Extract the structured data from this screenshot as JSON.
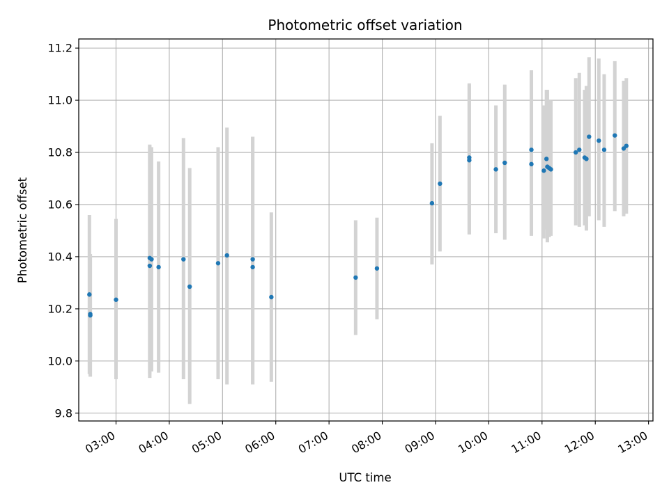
{
  "chart_data": {
    "type": "scatter",
    "title": "Photometric offset variation",
    "xlabel": "UTC time",
    "ylabel": "Photometric offset",
    "xlim": [
      "02:18",
      "13:05"
    ],
    "ylim": [
      9.77,
      11.235
    ],
    "grid": true,
    "x_ticks": [
      "03:00",
      "04:00",
      "05:00",
      "06:00",
      "07:00",
      "08:00",
      "09:00",
      "10:00",
      "11:00",
      "12:00",
      "13:00"
    ],
    "y_ticks": [
      9.8,
      10.0,
      10.2,
      10.4,
      10.6,
      10.8,
      11.0,
      11.2
    ],
    "y_tick_labels": [
      "9.8",
      "10.0",
      "10.2",
      "10.4",
      "10.6",
      "10.8",
      "11.0",
      "11.2"
    ],
    "colors": {
      "points": "#1f77b4",
      "error_bars": "#d3d3d3",
      "grid": "#b0b0b0"
    },
    "points": [
      {
        "x": "02:30",
        "y": 10.255,
        "lo": 9.95,
        "hi": 10.56
      },
      {
        "x": "02:31",
        "y": 10.18,
        "lo": 9.94,
        "hi": 10.41
      },
      {
        "x": "02:31",
        "y": 10.175,
        "lo": 9.94,
        "hi": 10.41
      },
      {
        "x": "03:00",
        "y": 10.235,
        "lo": 9.93,
        "hi": 10.545
      },
      {
        "x": "03:38",
        "y": 10.395,
        "lo": 9.935,
        "hi": 10.83
      },
      {
        "x": "03:38",
        "y": 10.365,
        "lo": 9.95,
        "hi": 10.825
      },
      {
        "x": "03:40",
        "y": 10.39,
        "lo": 9.96,
        "hi": 10.82
      },
      {
        "x": "03:48",
        "y": 10.36,
        "lo": 9.955,
        "hi": 10.765
      },
      {
        "x": "04:16",
        "y": 10.39,
        "lo": 9.93,
        "hi": 10.855
      },
      {
        "x": "04:23",
        "y": 10.285,
        "lo": 9.835,
        "hi": 10.74
      },
      {
        "x": "04:55",
        "y": 10.375,
        "lo": 9.93,
        "hi": 10.82
      },
      {
        "x": "05:05",
        "y": 10.405,
        "lo": 9.91,
        "hi": 10.895
      },
      {
        "x": "05:34",
        "y": 10.39,
        "lo": 9.91,
        "hi": 10.86
      },
      {
        "x": "05:34",
        "y": 10.36,
        "lo": 9.91,
        "hi": 10.86
      },
      {
        "x": "05:55",
        "y": 10.245,
        "lo": 9.92,
        "hi": 10.57
      },
      {
        "x": "07:30",
        "y": 10.32,
        "lo": 10.1,
        "hi": 10.54
      },
      {
        "x": "07:54",
        "y": 10.355,
        "lo": 10.16,
        "hi": 10.55
      },
      {
        "x": "08:56",
        "y": 10.605,
        "lo": 10.37,
        "hi": 10.835
      },
      {
        "x": "09:05",
        "y": 10.68,
        "lo": 10.42,
        "hi": 10.94
      },
      {
        "x": "09:38",
        "y": 10.78,
        "lo": 10.485,
        "hi": 11.065
      },
      {
        "x": "09:38",
        "y": 10.77,
        "lo": 10.485,
        "hi": 11.06
      },
      {
        "x": "10:08",
        "y": 10.735,
        "lo": 10.49,
        "hi": 10.98
      },
      {
        "x": "10:18",
        "y": 10.76,
        "lo": 10.465,
        "hi": 11.06
      },
      {
        "x": "10:48",
        "y": 10.81,
        "lo": 10.515,
        "hi": 11.115
      },
      {
        "x": "10:48",
        "y": 10.755,
        "lo": 10.48,
        "hi": 11.035
      },
      {
        "x": "11:02",
        "y": 10.73,
        "lo": 10.47,
        "hi": 10.98
      },
      {
        "x": "11:05",
        "y": 10.775,
        "lo": 10.505,
        "hi": 11.04
      },
      {
        "x": "11:06",
        "y": 10.745,
        "lo": 10.455,
        "hi": 11.04
      },
      {
        "x": "11:08",
        "y": 10.74,
        "lo": 10.475,
        "hi": 11.0
      },
      {
        "x": "11:10",
        "y": 10.735,
        "lo": 10.48,
        "hi": 11.0
      },
      {
        "x": "11:38",
        "y": 10.8,
        "lo": 10.52,
        "hi": 11.085
      },
      {
        "x": "11:42",
        "y": 10.81,
        "lo": 10.515,
        "hi": 11.105
      },
      {
        "x": "11:48",
        "y": 10.78,
        "lo": 10.52,
        "hi": 11.04
      },
      {
        "x": "11:50",
        "y": 10.775,
        "lo": 10.5,
        "hi": 11.055
      },
      {
        "x": "11:53",
        "y": 10.86,
        "lo": 10.555,
        "hi": 11.165
      },
      {
        "x": "12:04",
        "y": 10.845,
        "lo": 10.54,
        "hi": 11.16
      },
      {
        "x": "12:10",
        "y": 10.81,
        "lo": 10.515,
        "hi": 11.1
      },
      {
        "x": "12:22",
        "y": 10.865,
        "lo": 10.575,
        "hi": 11.15
      },
      {
        "x": "12:32",
        "y": 10.815,
        "lo": 10.555,
        "hi": 11.075
      },
      {
        "x": "12:35",
        "y": 10.825,
        "lo": 10.565,
        "hi": 11.085
      }
    ]
  }
}
